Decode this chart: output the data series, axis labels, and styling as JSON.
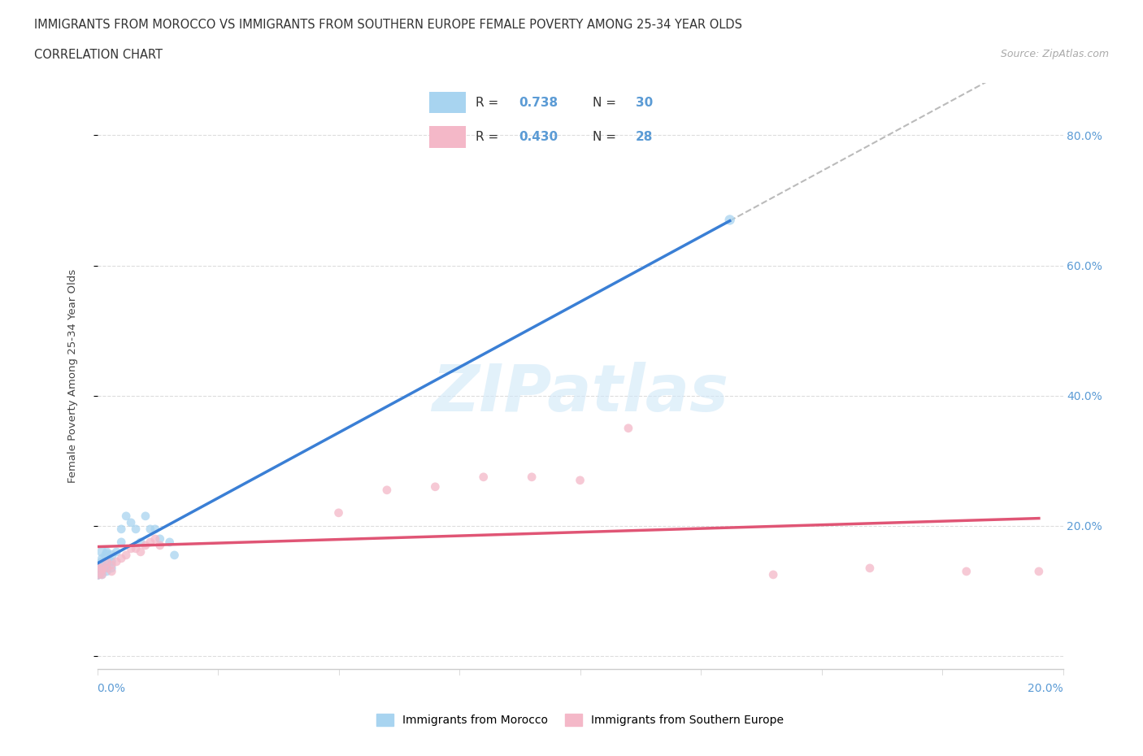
{
  "title_line1": "IMMIGRANTS FROM MOROCCO VS IMMIGRANTS FROM SOUTHERN EUROPE FEMALE POVERTY AMONG 25-34 YEAR OLDS",
  "title_line2": "CORRELATION CHART",
  "source": "Source: ZipAtlas.com",
  "ylabel": "Female Poverty Among 25-34 Year Olds",
  "watermark": "ZIPatlas",
  "morocco_color": "#a8d4f0",
  "southern_color": "#f4b8c8",
  "morocco_line_color": "#3a7fd5",
  "southern_line_color": "#e05575",
  "dash_line_color": "#bbbbbb",
  "xlim": [
    0.0,
    0.2
  ],
  "ylim": [
    -0.02,
    0.88
  ],
  "yticks": [
    0.0,
    0.2,
    0.4,
    0.6,
    0.8
  ],
  "ytick_labels": [
    "",
    "20.0%",
    "40.0%",
    "60.0%",
    "80.0%"
  ],
  "xtick_labels": [
    "0.0%",
    "20.0%"
  ],
  "morocco_x": [
    0.0,
    0.0,
    0.0,
    0.001,
    0.001,
    0.001,
    0.001,
    0.001,
    0.002,
    0.002,
    0.002,
    0.002,
    0.002,
    0.003,
    0.003,
    0.003,
    0.004,
    0.005,
    0.005,
    0.006,
    0.007,
    0.008,
    0.009,
    0.01,
    0.011,
    0.012,
    0.013,
    0.015,
    0.016,
    0.131
  ],
  "morocco_y": [
    0.13,
    0.14,
    0.125,
    0.16,
    0.15,
    0.135,
    0.145,
    0.125,
    0.155,
    0.145,
    0.135,
    0.16,
    0.13,
    0.155,
    0.145,
    0.135,
    0.16,
    0.195,
    0.175,
    0.215,
    0.205,
    0.195,
    0.175,
    0.215,
    0.195,
    0.195,
    0.18,
    0.175,
    0.155,
    0.67
  ],
  "morocco_sizes": [
    200,
    100,
    80,
    80,
    60,
    60,
    60,
    60,
    100,
    80,
    60,
    60,
    60,
    80,
    60,
    60,
    60,
    60,
    60,
    60,
    60,
    60,
    60,
    60,
    60,
    60,
    60,
    60,
    60,
    80
  ],
  "southern_x": [
    0.0,
    0.001,
    0.001,
    0.002,
    0.002,
    0.003,
    0.003,
    0.004,
    0.005,
    0.006,
    0.007,
    0.008,
    0.009,
    0.01,
    0.011,
    0.012,
    0.013,
    0.05,
    0.06,
    0.07,
    0.08,
    0.09,
    0.1,
    0.11,
    0.14,
    0.16,
    0.18,
    0.195
  ],
  "southern_y": [
    0.13,
    0.135,
    0.125,
    0.145,
    0.135,
    0.14,
    0.13,
    0.145,
    0.15,
    0.155,
    0.165,
    0.165,
    0.16,
    0.17,
    0.175,
    0.18,
    0.17,
    0.22,
    0.255,
    0.26,
    0.275,
    0.275,
    0.27,
    0.35,
    0.125,
    0.135,
    0.13,
    0.13
  ],
  "southern_sizes": [
    200,
    80,
    60,
    60,
    60,
    60,
    60,
    60,
    60,
    60,
    60,
    60,
    60,
    60,
    60,
    60,
    60,
    60,
    60,
    60,
    60,
    60,
    60,
    60,
    60,
    60,
    60,
    60
  ]
}
